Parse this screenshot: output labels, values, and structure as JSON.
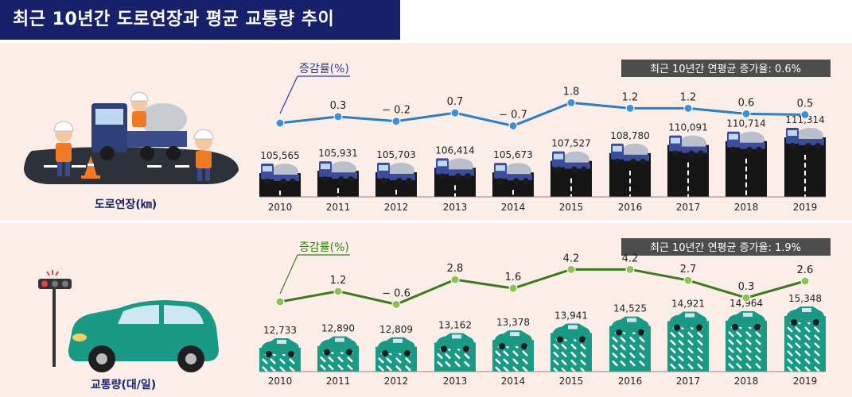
{
  "title": "최근 10년간 도로연장과 평균 교통량 추이",
  "colors": {
    "title_bg": "#17206a",
    "road_line": "#2f7dc1",
    "road_dot": "#3f8fd6",
    "traffic_line": "#3d7a1f",
    "traffic_dot": "#8fbf55",
    "bar_dark": "#151515",
    "teal": "#1a9a85",
    "badge_bg": "#4d4d4d"
  },
  "chart_data": [
    {
      "type": "bar",
      "name": "road",
      "panel_label": "도로연장(㎞)",
      "rate_label": "증감률(%)",
      "summary": "최근 10년간 연평균 증가율: 0.6%",
      "categories": [
        "2010",
        "2011",
        "2012",
        "2013",
        "2014",
        "2015",
        "2016",
        "2017",
        "2018",
        "2019"
      ],
      "values": [
        105565,
        105931,
        105703,
        106414,
        105673,
        107527,
        108780,
        110091,
        110714,
        111314
      ],
      "value_labels": [
        "105,565",
        "105,931",
        "105,703",
        "106,414",
        "105,673",
        "107,527",
        "108,780",
        "110,091",
        "110,714",
        "111,314"
      ],
      "rate_labels": [
        "",
        "0.3",
        "− 0.2",
        "0.7",
        "− 0.7",
        "1.8",
        "1.2",
        "1.2",
        "0.6",
        "0.5"
      ],
      "rate_values": [
        null,
        0.3,
        -0.2,
        0.7,
        -0.7,
        1.8,
        1.2,
        1.2,
        0.6,
        0.5
      ],
      "icon": "cement-truck-icon"
    },
    {
      "type": "bar",
      "name": "traffic",
      "panel_label": "교통량(대/일)",
      "rate_label": "증감률(%)",
      "summary": "최근 10년간 연평균 증가율: 1.9%",
      "categories": [
        "2010",
        "2011",
        "2012",
        "2013",
        "2014",
        "2015",
        "2016",
        "2017",
        "2018",
        "2019"
      ],
      "values": [
        12733,
        12890,
        12809,
        13162,
        13378,
        13941,
        14525,
        14921,
        14964,
        15348
      ],
      "value_labels": [
        "12,733",
        "12,890",
        "12,809",
        "13,162",
        "13,378",
        "13,941",
        "14,525",
        "14,921",
        "14,964",
        "15,348"
      ],
      "rate_labels": [
        "",
        "1.2",
        "− 0.6",
        "2.8",
        "1.6",
        "4.2",
        "4.2",
        "2.7",
        "0.3",
        "2.6"
      ],
      "rate_values": [
        null,
        1.2,
        -0.6,
        2.8,
        1.6,
        4.2,
        4.2,
        2.7,
        0.3,
        2.6
      ],
      "icon": "car-icon"
    }
  ]
}
